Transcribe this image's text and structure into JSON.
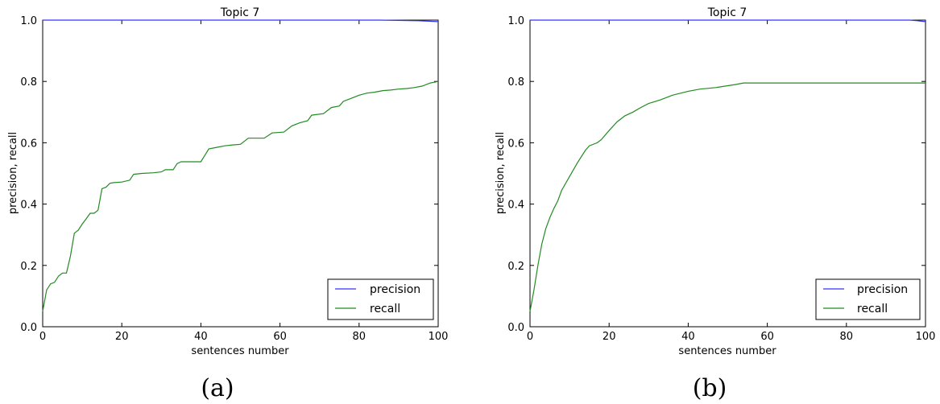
{
  "chart_data": [
    {
      "type": "line",
      "title": "Topic 7",
      "xlabel": "sentences number",
      "ylabel": "precision, recall",
      "xlim": [
        0,
        100
      ],
      "ylim": [
        0.0,
        1.0
      ],
      "xticks": [
        "0",
        "20",
        "40",
        "60",
        "80",
        "100"
      ],
      "yticks": [
        "0.0",
        "0.2",
        "0.4",
        "0.6",
        "0.8",
        "1.0"
      ],
      "grid": false,
      "legend_position": "bottom-right",
      "caption": "(a)",
      "series": [
        {
          "name": "precision",
          "color": "#3333ff",
          "x": [
            0,
            85,
            90,
            95,
            100
          ],
          "y": [
            1.0,
            1.0,
            0.999,
            0.998,
            0.995
          ]
        },
        {
          "name": "recall",
          "color": "#228b22",
          "x": [
            0,
            1,
            2,
            3,
            4,
            5,
            6,
            7,
            8,
            9,
            10,
            11,
            12,
            13,
            14,
            15,
            16,
            17,
            18,
            20,
            22,
            23,
            25,
            28,
            30,
            31,
            33,
            34,
            35,
            40,
            42,
            44,
            46,
            48,
            50,
            52,
            56,
            58,
            61,
            63,
            65,
            67,
            68,
            71,
            73,
            75,
            76,
            78,
            80,
            82,
            84,
            86,
            88,
            90,
            92,
            94,
            96,
            98,
            100
          ],
          "y": [
            0.05,
            0.12,
            0.14,
            0.145,
            0.165,
            0.175,
            0.175,
            0.23,
            0.305,
            0.315,
            0.335,
            0.352,
            0.37,
            0.37,
            0.38,
            0.45,
            0.455,
            0.468,
            0.47,
            0.472,
            0.478,
            0.497,
            0.5,
            0.502,
            0.505,
            0.512,
            0.512,
            0.532,
            0.538,
            0.538,
            0.58,
            0.585,
            0.59,
            0.593,
            0.595,
            0.615,
            0.615,
            0.632,
            0.635,
            0.655,
            0.665,
            0.672,
            0.69,
            0.695,
            0.715,
            0.72,
            0.735,
            0.745,
            0.755,
            0.762,
            0.765,
            0.77,
            0.772,
            0.775,
            0.777,
            0.78,
            0.785,
            0.795,
            0.8
          ]
        }
      ]
    },
    {
      "type": "line",
      "title": "Topic 7",
      "xlabel": "sentences number",
      "ylabel": "precision, recall",
      "xlim": [
        0,
        100
      ],
      "ylim": [
        0.0,
        1.0
      ],
      "xticks": [
        "0",
        "20",
        "40",
        "60",
        "80",
        "100"
      ],
      "yticks": [
        "0.0",
        "0.2",
        "0.4",
        "0.6",
        "0.8",
        "1.0"
      ],
      "grid": false,
      "legend_position": "bottom-right",
      "caption": "(b)",
      "series": [
        {
          "name": "precision",
          "color": "#3333ff",
          "x": [
            0,
            96,
            98,
            100
          ],
          "y": [
            1.0,
            1.0,
            0.998,
            0.995
          ]
        },
        {
          "name": "recall",
          "color": "#228b22",
          "x": [
            0,
            1,
            2,
            3,
            4,
            5,
            6,
            7,
            8,
            10,
            12,
            14,
            15,
            17,
            18,
            20,
            22,
            24,
            26,
            28,
            30,
            33,
            36,
            40,
            43,
            47,
            50,
            52,
            54,
            60,
            70,
            80,
            90,
            100
          ],
          "y": [
            0.05,
            0.12,
            0.2,
            0.27,
            0.32,
            0.355,
            0.385,
            0.41,
            0.445,
            0.49,
            0.535,
            0.575,
            0.59,
            0.6,
            0.61,
            0.64,
            0.668,
            0.688,
            0.7,
            0.715,
            0.728,
            0.74,
            0.755,
            0.768,
            0.775,
            0.78,
            0.786,
            0.79,
            0.795,
            0.795,
            0.795,
            0.795,
            0.795,
            0.795
          ]
        }
      ]
    }
  ]
}
